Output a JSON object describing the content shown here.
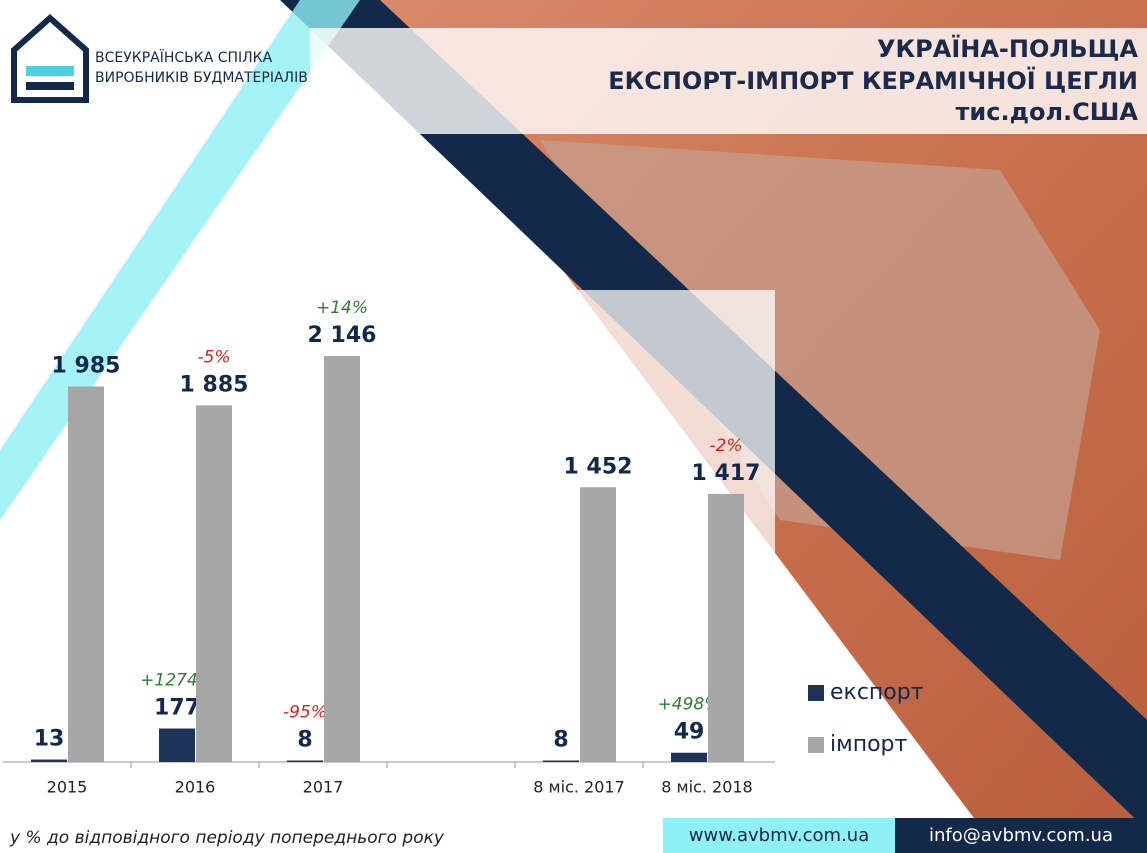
{
  "logo": {
    "lines": [
      "ВСЕУКРАЇНСЬКА СПІЛКА",
      "ВИРОБНИКІВ БУДМАТЕРІАЛІВ"
    ]
  },
  "chart_data": {
    "type": "bar",
    "title_lines": [
      "УКРАЇНА-ПОЛЬЩА",
      "ЕКСПОРТ-ІМПОРТ КЕРАМІЧНОЇ ЦЕГЛИ",
      "тис.дол.США"
    ],
    "categories": [
      "2015",
      "2016",
      "2017",
      null,
      "8 міс. 2017",
      "8 міс. 2018"
    ],
    "series": [
      {
        "name": "експорт",
        "color": "#1b3458",
        "values": [
          13,
          177,
          8,
          null,
          8,
          49
        ],
        "change_labels": [
          null,
          "+1274%",
          "-95%",
          null,
          null,
          "+498%"
        ]
      },
      {
        "name": "імпорт",
        "color": "#a6a6a6",
        "values": [
          1985,
          1885,
          2146,
          null,
          1452,
          1417
        ],
        "value_labels": [
          "1 985",
          "1 885",
          "2 146",
          null,
          "1 452",
          "1 417"
        ],
        "change_labels": [
          null,
          "-5%",
          "+14%",
          null,
          null,
          "-2%"
        ]
      }
    ],
    "positive_color": "#2e7d32",
    "negative_color": "#e0201b",
    "footnote": "у % до відповідного періоду попереднього року"
  },
  "footer": {
    "website": "www.avbmv.com.ua",
    "email": "info@avbmv.com.ua"
  }
}
